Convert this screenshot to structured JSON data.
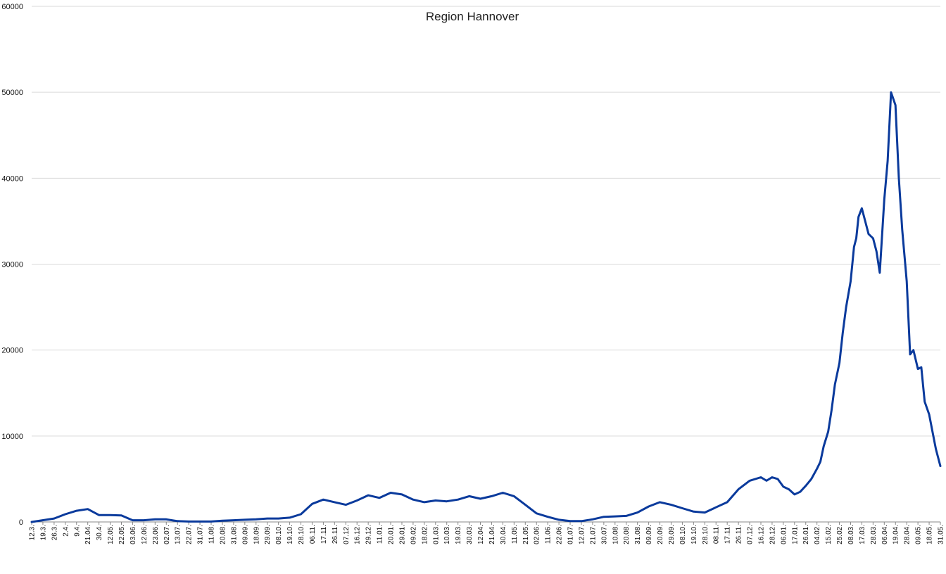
{
  "chart_data": {
    "type": "line",
    "title": "Region Hannover",
    "xlabel": "",
    "ylabel": "",
    "ylim": [
      0,
      60000
    ],
    "yticks": [
      0,
      10000,
      20000,
      30000,
      40000,
      50000,
      60000
    ],
    "grid": "horizontal",
    "legend": "none",
    "line_color": "#0a3a9c",
    "x_tick_labels": [
      "12.3.",
      "19.3.",
      "26.3.",
      "2.4.",
      "9.4.",
      "21.04.",
      "30.4.",
      "12.05.",
      "22.05.",
      "03.06.",
      "12.06.",
      "23.06.",
      "02.07.",
      "13.07.",
      "22.07.",
      "31.07.",
      "11.08.",
      "20.08.",
      "31.08.",
      "09.09.",
      "18.09.",
      "29.09.",
      "08.10.",
      "19.10.",
      "28.10.",
      "06.11.",
      "17.11.",
      "26.11.",
      "07.12.",
      "16.12.",
      "29.12.",
      "11.01.",
      "20.01.",
      "29.01.",
      "09.02.",
      "18.02.",
      "01.03.",
      "10.03.",
      "19.03.",
      "30.03.",
      "12.04.",
      "21.04.",
      "30.04.",
      "11.05.",
      "21.05.",
      "02.06.",
      "11.06.",
      "22.06.",
      "01.07.",
      "12.07.",
      "21.07.",
      "30.07.",
      "10.08.",
      "20.08.",
      "31.08.",
      "09.09.",
      "20.09.",
      "29.09.",
      "08.10.",
      "19.10.",
      "28.10.",
      "08.11.",
      "17.11.",
      "26.11.",
      "07.12.",
      "16.12.",
      "28.12.",
      "06.01.",
      "17.01.",
      "26.01.",
      "04.02.",
      "15.02.",
      "25.02.",
      "08.03.",
      "17.03.",
      "28.03.",
      "06.04.",
      "19.04.",
      "28.04.",
      "09.05.",
      "18.05.",
      "31.05."
    ],
    "x": [
      0,
      2,
      3,
      4,
      5,
      6,
      7,
      8,
      9,
      10,
      11,
      12,
      12.5,
      13,
      14,
      15,
      16,
      17,
      18,
      19,
      20,
      21,
      22,
      23,
      24,
      25,
      26,
      27,
      28,
      29,
      30,
      31,
      32,
      33,
      34,
      35,
      36,
      37,
      38,
      39,
      40,
      41,
      42,
      43,
      44,
      45,
      46,
      47,
      48,
      49,
      50,
      51,
      52,
      53,
      54,
      55,
      56,
      57,
      58,
      59,
      60,
      61,
      62,
      63,
      64,
      65,
      65.5,
      66,
      66.5,
      67,
      67.5,
      68,
      68.5,
      69,
      69.5,
      70,
      70.3,
      70.6,
      71,
      71.3,
      71.6,
      72,
      72.3,
      72.6,
      73,
      73.3,
      73.5,
      73.7,
      74,
      74.3,
      74.6,
      75,
      75.3,
      75.6,
      76,
      76.3,
      76.6,
      77,
      77.3,
      77.6,
      78,
      78.3,
      78.6,
      79,
      79.3,
      79.6,
      80,
      80.3,
      80.6,
      81
    ],
    "y": [
      0,
      400,
      900,
      1300,
      1500,
      800,
      800,
      750,
      200,
      200,
      300,
      300,
      200,
      100,
      50,
      50,
      50,
      150,
      200,
      250,
      300,
      400,
      400,
      500,
      900,
      2100,
      2600,
      2300,
      2000,
      2500,
      3100,
      2800,
      3400,
      3200,
      2600,
      2300,
      2500,
      2400,
      2600,
      3000,
      2700,
      3000,
      3400,
      3000,
      2000,
      1000,
      600,
      250,
      100,
      100,
      300,
      600,
      650,
      700,
      1100,
      1800,
      2300,
      2000,
      1600,
      1200,
      1100,
      1700,
      2300,
      3800,
      4800,
      5200,
      4800,
      5200,
      5000,
      4100,
      3800,
      3200,
      3500,
      4200,
      5000,
      6200,
      7000,
      8800,
      10500,
      13000,
      16000,
      18500,
      22000,
      25000,
      28000,
      32000,
      33000,
      35500,
      36500,
      35000,
      33500,
      33000,
      31500,
      29000,
      37500,
      42000,
      50000,
      48500,
      40000,
      34000,
      28000,
      19500,
      20000,
      17800,
      18000,
      14000,
      12500,
      10500,
      8500,
      6500
    ]
  }
}
